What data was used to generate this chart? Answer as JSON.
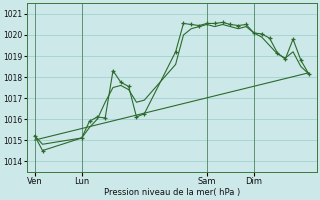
{
  "title": "",
  "xlabel": "Pression niveau de la mer( hPa )",
  "ylim": [
    1013.5,
    1021.5
  ],
  "yticks": [
    1014,
    1015,
    1016,
    1017,
    1018,
    1019,
    1020,
    1021
  ],
  "bg_color": "#cce8e8",
  "grid_color": "#99cccc",
  "line_color": "#2d6a2d",
  "vline_x": [
    0,
    18,
    66,
    84
  ],
  "xtick_positions": [
    0,
    18,
    66,
    84
  ],
  "xtick_labels": [
    "Ven",
    "Lun",
    "Sam",
    "Dim"
  ],
  "xlim": [
    -3,
    108
  ],
  "line1_x": [
    0,
    3,
    18,
    21,
    24,
    27,
    30,
    33,
    36,
    39,
    42,
    54,
    57,
    60,
    63,
    66,
    69,
    72,
    75,
    78,
    81,
    84,
    87,
    90,
    93,
    96,
    99,
    102,
    105
  ],
  "line1_y": [
    1015.2,
    1014.5,
    1015.1,
    1015.9,
    1016.1,
    1016.05,
    1018.3,
    1017.75,
    1017.55,
    1016.1,
    1016.25,
    1019.2,
    1020.55,
    1020.5,
    1020.45,
    1020.55,
    1020.55,
    1020.6,
    1020.5,
    1020.45,
    1020.5,
    1020.1,
    1020.05,
    1019.85,
    1019.15,
    1018.85,
    1019.8,
    1018.8,
    1018.15
  ],
  "line2_x": [
    0,
    3,
    18,
    21,
    24,
    27,
    30,
    33,
    36,
    39,
    42,
    54,
    57,
    60,
    63,
    66,
    69,
    72,
    75,
    78,
    81,
    84,
    87,
    90,
    93,
    96,
    99,
    102,
    105
  ],
  "line2_y": [
    1015.2,
    1014.8,
    1015.1,
    1015.6,
    1016.0,
    1016.8,
    1017.5,
    1017.6,
    1017.4,
    1016.8,
    1016.9,
    1018.6,
    1020.0,
    1020.3,
    1020.4,
    1020.5,
    1020.4,
    1020.5,
    1020.4,
    1020.3,
    1020.4,
    1020.1,
    1019.9,
    1019.5,
    1019.1,
    1018.9,
    1019.2,
    1018.5,
    1018.15
  ],
  "line3_x": [
    0,
    105
  ],
  "line3_y": [
    1015.0,
    1018.2
  ]
}
